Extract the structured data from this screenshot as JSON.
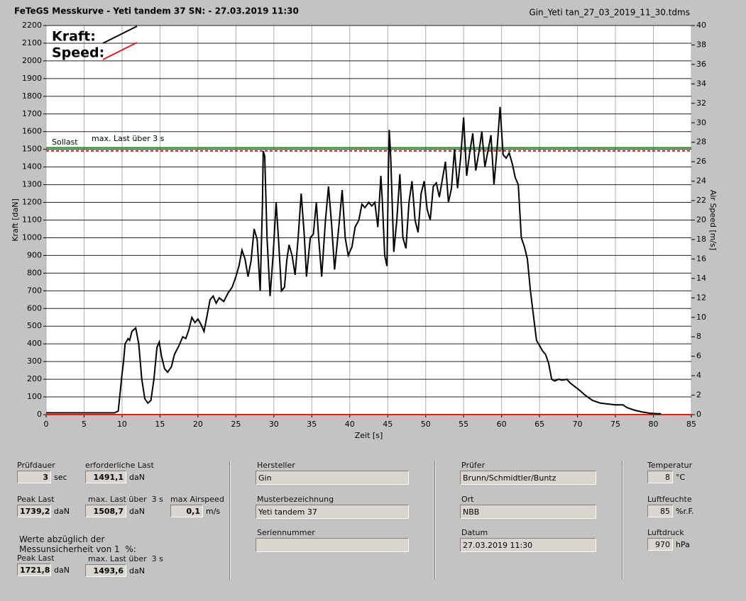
{
  "header": {
    "title": "FeTeGS Messkurve - Yeti tandem 37  SN:  - 27.03.2019 11:30",
    "file": "Gin_Yeti tan_27_03_2019_11_30.tdms"
  },
  "chart_data": {
    "type": "line",
    "x_label": "Zeit [s]",
    "y_label": "Kraft [daN]",
    "y2_label": "Air Speed [m/s]",
    "xlim": [
      0,
      85
    ],
    "xticks": [
      0,
      5,
      10,
      15,
      20,
      25,
      30,
      35,
      40,
      45,
      50,
      55,
      60,
      65,
      70,
      75,
      80,
      85
    ],
    "ylim": [
      0,
      2200
    ],
    "yticks": [
      0,
      100,
      200,
      300,
      400,
      500,
      600,
      700,
      800,
      900,
      1000,
      1100,
      1200,
      1300,
      1400,
      1500,
      1600,
      1700,
      1800,
      1900,
      2000,
      2100,
      2200
    ],
    "y2lim": [
      0,
      40
    ],
    "y2ticks": [
      0,
      2,
      4,
      6,
      8,
      10,
      12,
      14,
      16,
      18,
      20,
      22,
      24,
      26,
      28,
      30,
      32,
      34,
      36,
      38,
      40
    ],
    "grid": true,
    "reference_lines": [
      {
        "label": "Sollast",
        "value": 1491.1,
        "color": "#c0202a"
      },
      {
        "label": "max. Last über  3 s",
        "value": 1508.7,
        "color": "#1e8a1e"
      }
    ],
    "series": [
      {
        "name": "Kraft:",
        "color": "#000000",
        "x": [
          0,
          9,
          9.5,
          10,
          10.2,
          10.4,
          10.8,
          11,
          11.3,
          11.8,
          12.2,
          12.6,
          13,
          13.4,
          13.8,
          14.2,
          14.6,
          14.9,
          15.2,
          15.6,
          16,
          16.5,
          16.9,
          17.5,
          18,
          18.4,
          18.8,
          19.2,
          19.6,
          20,
          20.4,
          20.8,
          21.2,
          21.6,
          22,
          22.4,
          22.8,
          23.4,
          24,
          24.5,
          25,
          25.4,
          25.8,
          26.2,
          26.6,
          27,
          27.4,
          27.8,
          28.2,
          28.5,
          28.6,
          28.8,
          29.1,
          29.5,
          29.9,
          30.3,
          30.6,
          31,
          31.4,
          31.7,
          32,
          32.4,
          32.8,
          33.2,
          33.6,
          34,
          34.3,
          34.8,
          35.2,
          35.6,
          35.9,
          36.3,
          36.8,
          37.2,
          37.6,
          38,
          38.6,
          39,
          39.4,
          39.8,
          40.3,
          40.7,
          41.2,
          41.6,
          42,
          42.5,
          42.9,
          43.3,
          43.7,
          44.1,
          44.3,
          44.6,
          44.9,
          45.1,
          45.2,
          45.4,
          45.8,
          46.2,
          46.6,
          47,
          47.4,
          47.8,
          48.2,
          48.6,
          49,
          49.4,
          49.8,
          50.2,
          50.6,
          51,
          51.4,
          51.8,
          52.2,
          52.6,
          53,
          53.4,
          53.8,
          54.2,
          54.6,
          55,
          55.4,
          55.8,
          56.2,
          56.6,
          57,
          57.4,
          57.8,
          58.2,
          58.6,
          59,
          59.4,
          59.8,
          60.2,
          60.6,
          61,
          61.4,
          61.8,
          62.2,
          62.6,
          63,
          63.4,
          63.8,
          64.2,
          64.6,
          65,
          65.4,
          65.8,
          66.2,
          66.6,
          67,
          67.5,
          68,
          68.6,
          69,
          69.6,
          70.2,
          71,
          72,
          73,
          74,
          75,
          76,
          76.5,
          77.5,
          78.5,
          79.5,
          80.5,
          81
        ],
        "values": [
          10,
          10,
          20,
          230,
          300,
          400,
          430,
          420,
          470,
          490,
          400,
          200,
          90,
          65,
          80,
          200,
          380,
          410,
          330,
          260,
          240,
          270,
          340,
          390,
          440,
          430,
          480,
          550,
          520,
          540,
          510,
          470,
          560,
          650,
          670,
          630,
          660,
          640,
          690,
          720,
          780,
          840,
          930,
          880,
          780,
          870,
          1050,
          990,
          700,
          1200,
          1490,
          1460,
          1000,
          670,
          900,
          1200,
          1000,
          700,
          720,
          870,
          960,
          900,
          790,
          1000,
          1250,
          1020,
          780,
          1000,
          1020,
          1200,
          1000,
          780,
          1100,
          1290,
          1080,
          820,
          1080,
          1270,
          1000,
          900,
          950,
          1060,
          1100,
          1190,
          1170,
          1200,
          1180,
          1200,
          1060,
          1350,
          1200,
          900,
          840,
          1400,
          1610,
          1450,
          920,
          1100,
          1360,
          1000,
          940,
          1200,
          1320,
          1100,
          1030,
          1250,
          1320,
          1160,
          1100,
          1290,
          1310,
          1230,
          1330,
          1430,
          1200,
          1280,
          1500,
          1280,
          1450,
          1680,
          1350,
          1480,
          1590,
          1380,
          1480,
          1600,
          1400,
          1490,
          1580,
          1300,
          1500,
          1740,
          1470,
          1450,
          1480,
          1420,
          1340,
          1300,
          1000,
          950,
          880,
          700,
          560,
          420,
          390,
          360,
          340,
          290,
          200,
          190,
          200,
          195,
          200,
          180,
          160,
          140,
          110,
          80,
          65,
          60,
          55,
          55,
          40,
          25,
          15,
          8,
          5,
          5
        ]
      },
      {
        "name": "Speed:",
        "color": "#e02020",
        "axis": "y2",
        "x": [
          0,
          85
        ],
        "values": [
          0,
          0
        ]
      }
    ]
  },
  "form": {
    "note": [
      "Werte abzüglich der",
      "Messunsicherheit von 1  %:"
    ],
    "fields": [
      {
        "label": "Prüfdauer",
        "value": "3",
        "unit": "sec"
      },
      {
        "label": "erforderliche Last",
        "value": "1491,1",
        "unit": "daN"
      },
      {
        "label": "Peak Last",
        "value": "1739,2",
        "unit": "daN"
      },
      {
        "label": "max. Last über  3 s",
        "value": "1508,7",
        "unit": "daN"
      },
      {
        "label": "max Airspeed",
        "value": "0,1",
        "unit": "m/s"
      },
      {
        "label": "Peak Last",
        "value": "1721,8",
        "unit": "daN"
      },
      {
        "label": "max. Last über  3 s",
        "value": "1493,6",
        "unit": "daN"
      },
      {
        "label": "Hersteller",
        "value": "Gin"
      },
      {
        "label": "Musterbezeichnung",
        "value": "Yeti tandem 37"
      },
      {
        "label": "Seriennummer"
      },
      {
        "label": "Prüfer",
        "value": "Brunn/Schmidtler/Buntz"
      },
      {
        "label": "Ort",
        "value": "NBB"
      },
      {
        "label": "Datum",
        "value": "27.03.2019 11:30"
      },
      {
        "label": "Temperatur",
        "value": "8",
        "unit": "°C"
      },
      {
        "label": "Luftfeuchte",
        "value": "85",
        "unit": "%r.F."
      },
      {
        "label": "Luftdruck",
        "value": "970",
        "unit": "hPa"
      }
    ]
  }
}
